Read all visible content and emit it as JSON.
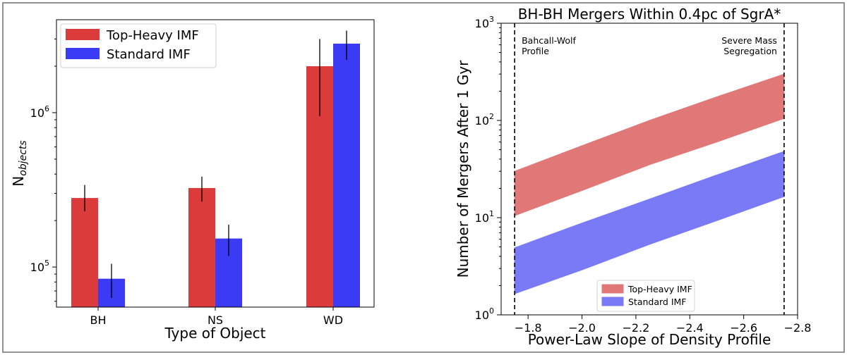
{
  "chart_data": [
    {
      "type": "bar",
      "yscale": "log",
      "ylim": [
        55000,
        4000000
      ],
      "categories": [
        "BH",
        "NS",
        "WD"
      ],
      "xlabel": "Type of Object",
      "ylabel": "N",
      "ylabel_sub": "objects",
      "yticks": [
        {
          "value": 100000,
          "base": "10",
          "exp": "5"
        },
        {
          "value": 1000000,
          "base": "10",
          "exp": "6"
        }
      ],
      "legend_position": "upper left",
      "series": [
        {
          "name": "Top-Heavy IMF",
          "color": "#dc3b3b",
          "values": [
            280000,
            325000,
            2000000
          ],
          "err_low": [
            230000,
            265000,
            950000
          ],
          "err_high": [
            340000,
            385000,
            3000000
          ]
        },
        {
          "name": "Standard IMF",
          "color": "#3b3bf5",
          "values": [
            84000,
            153000,
            2800000
          ],
          "err_low": [
            63000,
            118000,
            2200000
          ],
          "err_high": [
            105000,
            188000,
            3400000
          ]
        }
      ]
    },
    {
      "type": "area",
      "title": "BH-BH Mergers Within 0.4pc of SgrA*",
      "xlabel": "Power-Law Slope of Density Profile",
      "ylabel": "Number of Mergers After 1 Gyr",
      "xlim": [
        -1.7,
        -2.8
      ],
      "ylim": [
        1,
        1000
      ],
      "yscale": "log",
      "xticks": [
        {
          "value": -1.8,
          "label": "−1.8"
        },
        {
          "value": -2.0,
          "label": "−2.0"
        },
        {
          "value": -2.2,
          "label": "−2.2"
        },
        {
          "value": -2.4,
          "label": "−2.4"
        },
        {
          "value": -2.6,
          "label": "−2.6"
        },
        {
          "value": -2.8,
          "label": "−2.8"
        }
      ],
      "yticks": [
        {
          "value": 1,
          "base": "10",
          "exp": "0"
        },
        {
          "value": 10,
          "base": "10",
          "exp": "1"
        },
        {
          "value": 100,
          "base": "10",
          "exp": "2"
        },
        {
          "value": 1000,
          "base": "10",
          "exp": "3"
        }
      ],
      "grid": false,
      "legend_position": "lower center",
      "vlines": [
        -1.75,
        -2.75
      ],
      "annotations": [
        {
          "lines": [
            "Bahcall-Wolf",
            "Profile"
          ],
          "x": -1.75,
          "align": "left"
        },
        {
          "lines": [
            "Severe Mass",
            "Segregation"
          ],
          "x": -2.75,
          "align": "right"
        }
      ],
      "x": [
        -1.75,
        -2.0,
        -2.25,
        -2.5,
        -2.75
      ],
      "series": [
        {
          "name": "Top-Heavy IMF",
          "color": "#e07878",
          "lower": [
            10.5,
            19.0,
            35.0,
            60.0,
            105.0
          ],
          "upper": [
            30.0,
            55.0,
            100.0,
            175.0,
            300.0
          ]
        },
        {
          "name": "Standard IMF",
          "color": "#7a7af6",
          "lower": [
            1.65,
            2.9,
            5.3,
            9.3,
            16.5
          ],
          "upper": [
            4.9,
            8.8,
            15.5,
            27.5,
            48.0
          ]
        }
      ]
    }
  ]
}
